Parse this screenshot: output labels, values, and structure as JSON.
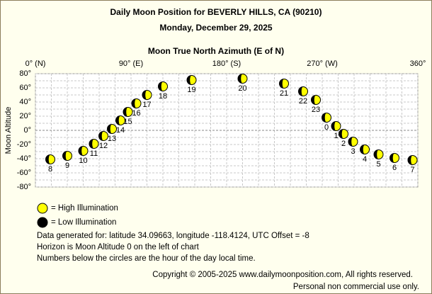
{
  "chart_data": {
    "type": "scatter",
    "title": "Daily Moon Position for BEVERLY HILLS, CA (90210)",
    "subtitle": "Monday, December 29, 2025",
    "x_label": "Moon True North Azimuth (E of N)",
    "y_label": "Moon Altitude",
    "xlim": [
      0,
      360
    ],
    "xticks": [
      {
        "value": 0,
        "label": "0° (N)"
      },
      {
        "value": 90,
        "label": "90° (E)"
      },
      {
        "value": 180,
        "label": "180° (S)"
      },
      {
        "value": 270,
        "label": "270° (W)"
      },
      {
        "value": 360,
        "label": "360°"
      }
    ],
    "ylim": [
      -80,
      80
    ],
    "yticks": [
      {
        "value": 80,
        "label": "80°"
      },
      {
        "value": 60,
        "label": "60°"
      },
      {
        "value": 40,
        "label": "40°"
      },
      {
        "value": 20,
        "label": "20°"
      },
      {
        "value": 0,
        "label": "0°"
      },
      {
        "value": -20,
        "label": "-20°"
      },
      {
        "value": -40,
        "label": "-40°"
      },
      {
        "value": -60,
        "label": "-60°"
      },
      {
        "value": -80,
        "label": "-80°"
      }
    ],
    "grid": true,
    "series": [
      {
        "color": "#ffff00",
        "hours": [
          8,
          9,
          10,
          11,
          12,
          13,
          14,
          15,
          16,
          17,
          18,
          19,
          20,
          21,
          22,
          23,
          0,
          1,
          2,
          3,
          4,
          5,
          6,
          7
        ],
        "x": [
          14,
          30,
          45,
          55,
          64,
          72,
          80,
          87,
          95,
          105,
          120,
          147,
          195,
          234,
          252,
          264,
          274,
          283,
          290,
          299,
          310,
          323,
          338,
          355
        ],
        "values": [
          -41,
          -36,
          -29,
          -19,
          -8,
          2,
          14,
          26,
          38,
          50,
          62,
          71,
          73,
          66,
          55,
          43,
          18,
          6,
          -5,
          -16,
          -27,
          -34,
          -39,
          -42
        ]
      }
    ],
    "legend": [
      {
        "label": "= High Illumination",
        "color": "#ffff00"
      },
      {
        "label": "= Low Illumination",
        "color": "#000000"
      }
    ],
    "notes": [
      "Data generated for: latitude 34.09663, longitude -118.4124, UTC Offset = -8",
      "Horizon is Moon Altitude 0 on the left of chart",
      "Numbers below the circles are the hour of the day local time."
    ],
    "footer": [
      "Copyright © 2005-2025 www.dailymoonposition.com, All rights reserved.",
      "Personal non commercial use only."
    ]
  }
}
